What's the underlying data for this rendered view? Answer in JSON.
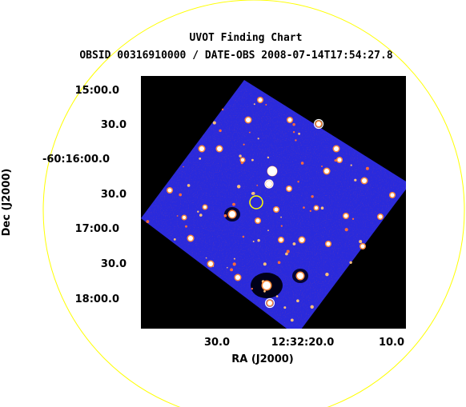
{
  "chart_data": {
    "type": "scatter",
    "title": "UVOT Finding Chart",
    "subtitle": "OBSID 00316910000 / DATE-OBS 2008-07-14T17:54:27.8",
    "xlabel": "RA (J2000)",
    "ylabel": "Dec (J2000)",
    "x_ticks": [
      "30.0",
      "12:32:20.0",
      "10.0"
    ],
    "y_ticks": [
      "15:00.0",
      "30.0",
      "-60:16:00.0",
      "30.0",
      "17:00.0",
      "30.0",
      "18:00.0"
    ],
    "grid": false,
    "colors": {
      "background": "#000000",
      "image_field": "#2a2adc",
      "source_marker": "#ffffff",
      "target_marker": "#ffff00",
      "field_of_view": "#ffff00"
    }
  }
}
